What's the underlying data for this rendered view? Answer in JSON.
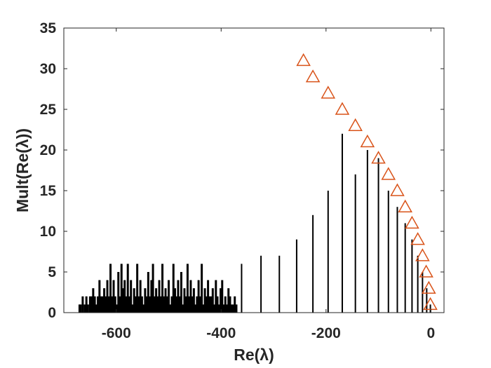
{
  "chart_data": {
    "type": "bar",
    "xlabel": "Re(λ)",
    "ylabel": "Mult(Re(λ))",
    "xlim": [
      -700,
      25
    ],
    "ylim": [
      0,
      35
    ],
    "xticks": [
      -600,
      -400,
      -200,
      0
    ],
    "yticks": [
      0,
      5,
      10,
      15,
      20,
      25,
      30,
      35
    ],
    "grid": false,
    "colors": {
      "bars": "#000000",
      "markers": "#d95319",
      "axes": "#262626"
    },
    "series": [
      {
        "type": "stem",
        "x": [
          -1,
          -8,
          -16,
          -25,
          -36,
          -49,
          -64,
          -81,
          -100,
          -121,
          -144,
          -169,
          -196,
          -225,
          -256,
          -289,
          -324,
          -361
        ],
        "values": [
          1,
          3,
          5,
          7,
          9,
          11,
          13,
          15,
          19,
          20,
          17,
          22,
          15,
          12,
          9,
          7,
          7,
          6
        ]
      },
      {
        "type": "stem-dense",
        "x": [
          -670,
          -668,
          -664,
          -660,
          -657,
          -654,
          -650,
          -647,
          -644,
          -641,
          -638,
          -635,
          -632,
          -629,
          -626,
          -623,
          -620,
          -617,
          -614,
          -611,
          -608,
          -605,
          -602,
          -599,
          -596,
          -593,
          -590,
          -587,
          -584,
          -581,
          -578,
          -575,
          -572,
          -569,
          -566,
          -563,
          -560,
          -557,
          -554,
          -551,
          -548,
          -545,
          -542,
          -539,
          -536,
          -533,
          -530,
          -527,
          -524,
          -521,
          -518,
          -515,
          -512,
          -509,
          -506,
          -503,
          -500,
          -497,
          -494,
          -491,
          -488,
          -485,
          -482,
          -479,
          -476,
          -473,
          -470,
          -467,
          -464,
          -461,
          -458,
          -455,
          -452,
          -449,
          -446,
          -443,
          -440,
          -437,
          -434,
          -431,
          -428,
          -425,
          -422,
          -419,
          -416,
          -413,
          -410,
          -407,
          -404,
          -401,
          -398,
          -395,
          -392,
          -389,
          -386,
          -383,
          -380,
          -377,
          -374,
          -371
        ],
        "values": [
          1,
          1,
          2,
          1,
          2,
          1,
          2,
          2,
          3,
          2,
          1,
          2,
          4,
          2,
          2,
          3,
          2,
          4,
          2,
          6,
          2,
          4,
          2,
          1,
          5,
          2,
          6,
          3,
          4,
          2,
          6,
          2,
          4,
          1,
          3,
          2,
          6,
          2,
          4,
          2,
          1,
          3,
          2,
          5,
          2,
          4,
          6,
          2,
          3,
          2,
          4,
          2,
          6,
          2,
          3,
          2,
          4,
          1,
          2,
          6,
          3,
          2,
          4,
          2,
          5,
          1,
          3,
          2,
          6,
          2,
          4,
          2,
          3,
          1,
          2,
          4,
          2,
          6,
          1,
          3,
          2,
          4,
          2,
          2,
          3,
          1,
          4,
          2,
          1,
          3,
          4,
          1,
          2,
          1,
          3,
          2,
          1,
          1,
          2,
          1
        ]
      },
      {
        "type": "marker-triangle",
        "x": [
          -1,
          -4,
          -9,
          -16,
          -25,
          -36,
          -49,
          -64,
          -81,
          -100,
          -121,
          -144,
          -169,
          -196,
          -225
        ],
        "values": [
          1,
          3,
          5,
          7,
          9,
          11,
          13,
          15,
          17,
          19,
          21,
          23,
          25,
          27,
          29
        ]
      }
    ],
    "extra_markers": {
      "x": [
        -243
      ],
      "values": [
        31
      ]
    }
  }
}
